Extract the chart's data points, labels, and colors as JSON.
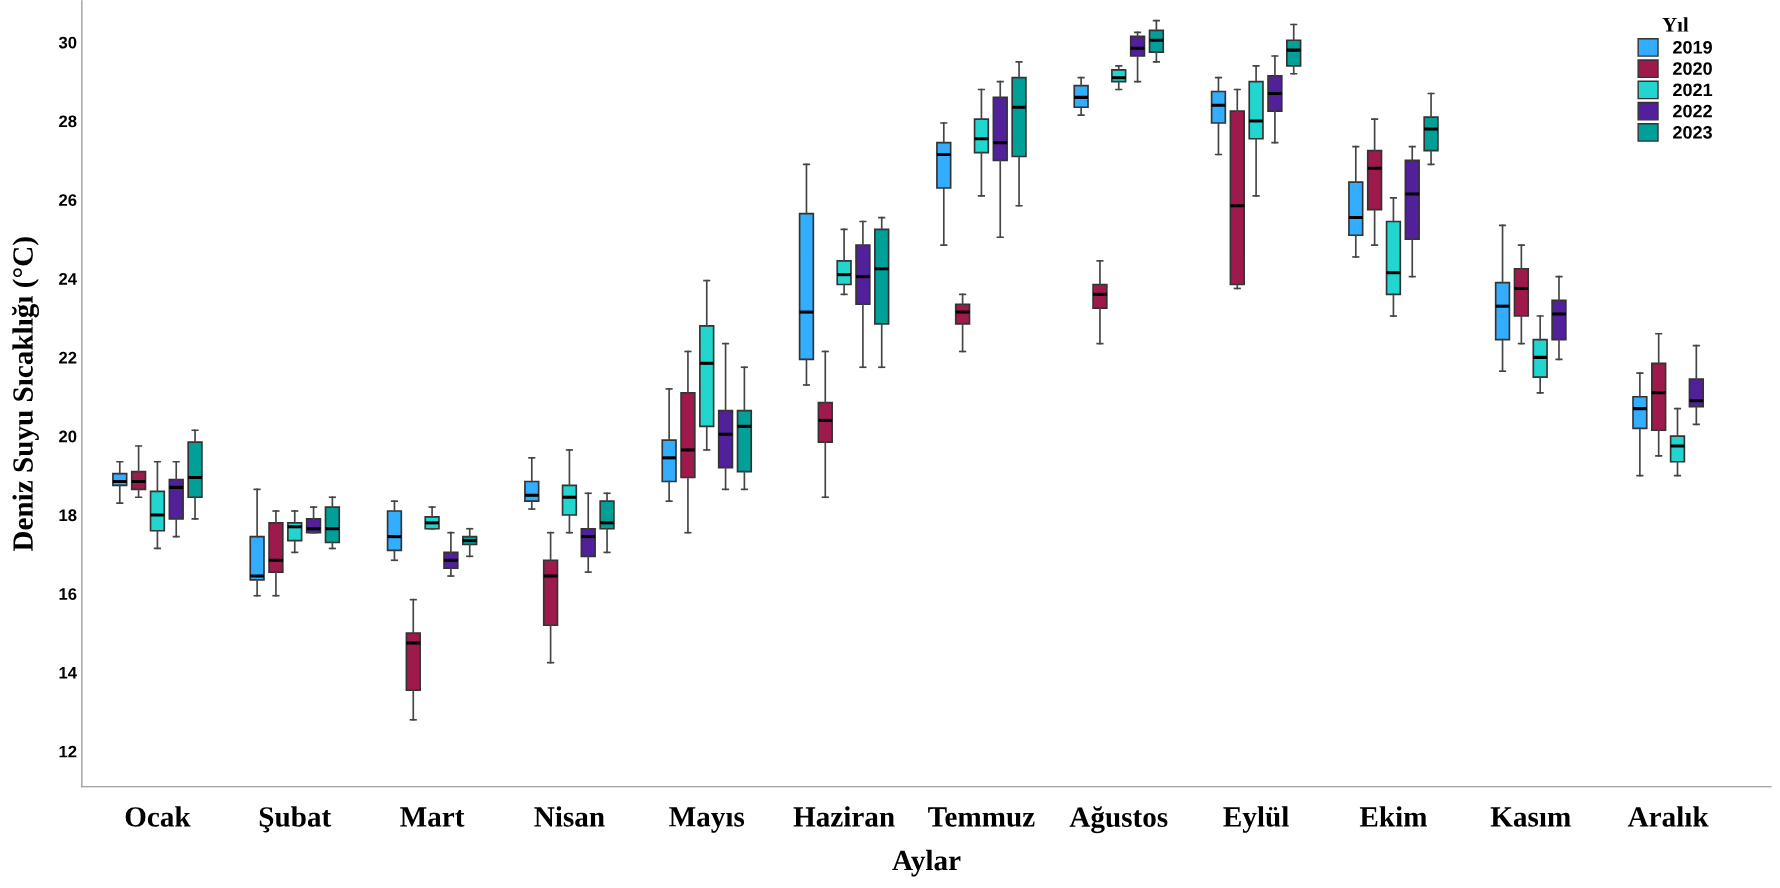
{
  "chart_data": {
    "type": "box",
    "xlabel": "Aylar",
    "ylabel": "Deniz Suyu Sıcaklığı (°C)",
    "legend_title": "Yıl",
    "legend": "top right",
    "grid": false,
    "categories": [
      "Ocak",
      "Şubat",
      "Mart",
      "Nisan",
      "Mayıs",
      "Haziran",
      "Temmuz",
      "Ağustos",
      "Eylül",
      "Ekim",
      "Kasım",
      "Aralık"
    ],
    "ylim": [
      11.1,
      31.05
    ],
    "yticks": [
      12,
      14,
      16,
      18,
      20,
      22,
      24,
      26,
      28,
      30
    ],
    "series": [
      {
        "name": "2019",
        "color": "#33adff",
        "boxes": [
          {
            "low": 18.3,
            "q1": 18.75,
            "median": 18.85,
            "q3": 19.05,
            "high": 19.35
          },
          {
            "low": 15.95,
            "q1": 16.35,
            "median": 16.45,
            "q3": 17.45,
            "high": 18.65
          },
          {
            "low": 16.85,
            "q1": 17.1,
            "median": 17.45,
            "q3": 18.1,
            "high": 18.35
          },
          {
            "low": 18.15,
            "q1": 18.35,
            "median": 18.5,
            "q3": 18.85,
            "high": 19.45
          },
          {
            "low": 18.35,
            "q1": 18.85,
            "median": 19.45,
            "q3": 19.9,
            "high": 21.2
          },
          {
            "low": 21.3,
            "q1": 21.95,
            "median": 23.15,
            "q3": 25.65,
            "high": 26.9
          },
          {
            "low": 24.85,
            "q1": 26.3,
            "median": 27.15,
            "q3": 27.45,
            "high": 27.95
          },
          {
            "low": 28.15,
            "q1": 28.35,
            "median": 28.6,
            "q3": 28.9,
            "high": 29.1
          },
          {
            "low": 27.15,
            "q1": 27.95,
            "median": 28.4,
            "q3": 28.75,
            "high": 29.1
          },
          {
            "low": 24.55,
            "q1": 25.1,
            "median": 25.55,
            "q3": 26.45,
            "high": 27.35
          },
          {
            "low": 21.65,
            "q1": 22.45,
            "median": 23.3,
            "q3": 23.9,
            "high": 25.35
          },
          {
            "low": 19.0,
            "q1": 20.2,
            "median": 20.7,
            "q3": 21.0,
            "high": 21.6
          }
        ]
      },
      {
        "name": "2020",
        "color": "#9e1a4c",
        "boxes": [
          {
            "low": 18.45,
            "q1": 18.65,
            "median": 18.85,
            "q3": 19.1,
            "high": 19.75
          },
          {
            "low": 15.95,
            "q1": 16.55,
            "median": 16.85,
            "q3": 17.8,
            "high": 18.1
          },
          {
            "low": 12.8,
            "q1": 13.55,
            "median": 14.75,
            "q3": 15.0,
            "high": 15.85
          },
          {
            "low": 14.25,
            "q1": 15.2,
            "median": 16.45,
            "q3": 16.85,
            "high": 17.55
          },
          {
            "low": 17.55,
            "q1": 18.95,
            "median": 19.65,
            "q3": 21.1,
            "high": 22.15
          },
          {
            "low": 18.45,
            "q1": 19.85,
            "median": 20.4,
            "q3": 20.85,
            "high": 22.15
          },
          {
            "low": 22.15,
            "q1": 22.85,
            "median": 23.15,
            "q3": 23.35,
            "high": 23.6
          },
          {
            "low": 22.35,
            "q1": 23.25,
            "median": 23.6,
            "q3": 23.85,
            "high": 24.45
          },
          {
            "low": 23.75,
            "q1": 23.85,
            "median": 25.85,
            "q3": 28.25,
            "high": 28.8
          },
          {
            "low": 24.85,
            "q1": 25.75,
            "median": 26.8,
            "q3": 27.25,
            "high": 28.05
          },
          {
            "low": 22.35,
            "q1": 23.05,
            "median": 23.75,
            "q3": 24.25,
            "high": 24.85
          },
          {
            "low": 19.5,
            "q1": 20.15,
            "median": 21.1,
            "q3": 21.85,
            "high": 22.6
          }
        ]
      },
      {
        "name": "2021",
        "color": "#22d6cf",
        "boxes": [
          {
            "low": 17.15,
            "q1": 17.6,
            "median": 18.0,
            "q3": 18.6,
            "high": 19.35
          },
          {
            "low": 17.05,
            "q1": 17.35,
            "median": 17.7,
            "q3": 17.8,
            "high": 18.1
          },
          {
            "low": 17.65,
            "q1": 17.65,
            "median": 17.8,
            "q3": 17.95,
            "high": 18.2
          },
          {
            "low": 17.55,
            "q1": 18.0,
            "median": 18.45,
            "q3": 18.75,
            "high": 19.65
          },
          {
            "low": 19.65,
            "q1": 20.25,
            "median": 21.85,
            "q3": 22.8,
            "high": 23.95
          },
          {
            "low": 23.6,
            "q1": 23.85,
            "median": 24.1,
            "q3": 24.45,
            "high": 25.25
          },
          {
            "low": 26.1,
            "q1": 27.2,
            "median": 27.55,
            "q3": 28.05,
            "high": 28.8
          },
          {
            "low": 28.8,
            "q1": 29.0,
            "median": 29.1,
            "q3": 29.3,
            "high": 29.4
          },
          {
            "low": 26.1,
            "q1": 27.55,
            "median": 28.0,
            "q3": 29.0,
            "high": 29.4
          },
          {
            "low": 23.05,
            "q1": 23.6,
            "median": 24.15,
            "q3": 25.45,
            "high": 26.05
          },
          {
            "low": 21.1,
            "q1": 21.5,
            "median": 22.0,
            "q3": 22.45,
            "high": 23.05
          },
          {
            "low": 19.0,
            "q1": 19.35,
            "median": 19.75,
            "q3": 20.0,
            "high": 20.7
          }
        ]
      },
      {
        "name": "2022",
        "color": "#52209a",
        "boxes": [
          {
            "low": 17.45,
            "q1": 17.9,
            "median": 18.7,
            "q3": 18.9,
            "high": 19.35
          },
          {
            "low": 17.55,
            "q1": 17.55,
            "median": 17.65,
            "q3": 17.9,
            "high": 18.2
          },
          {
            "low": 16.45,
            "q1": 16.65,
            "median": 16.85,
            "q3": 17.05,
            "high": 17.55
          },
          {
            "low": 16.55,
            "q1": 16.95,
            "median": 17.45,
            "q3": 17.65,
            "high": 18.55
          },
          {
            "low": 18.65,
            "q1": 19.2,
            "median": 20.05,
            "q3": 20.65,
            "high": 22.35
          },
          {
            "low": 21.75,
            "q1": 23.35,
            "median": 24.05,
            "q3": 24.85,
            "high": 25.45
          },
          {
            "low": 25.05,
            "q1": 27.0,
            "median": 27.45,
            "q3": 28.6,
            "high": 29.0
          },
          {
            "low": 29.0,
            "q1": 29.65,
            "median": 29.85,
            "q3": 30.15,
            "high": 30.25
          },
          {
            "low": 27.45,
            "q1": 28.25,
            "median": 28.7,
            "q3": 29.15,
            "high": 29.65
          },
          {
            "low": 24.05,
            "q1": 25.0,
            "median": 26.15,
            "q3": 27.0,
            "high": 27.35
          },
          {
            "low": 21.95,
            "q1": 22.45,
            "median": 23.1,
            "q3": 23.45,
            "high": 24.05
          },
          {
            "low": 20.3,
            "q1": 20.75,
            "median": 20.9,
            "q3": 21.45,
            "high": 22.3
          }
        ]
      },
      {
        "name": "2023",
        "color": "#009f98",
        "boxes": [
          {
            "low": 17.9,
            "q1": 18.45,
            "median": 18.95,
            "q3": 19.85,
            "high": 20.15
          },
          {
            "low": 17.15,
            "q1": 17.3,
            "median": 17.65,
            "q3": 18.2,
            "high": 18.45
          },
          {
            "low": 16.95,
            "q1": 17.25,
            "median": 17.35,
            "q3": 17.45,
            "high": 17.65
          },
          {
            "low": 17.05,
            "q1": 17.65,
            "median": 17.8,
            "q3": 18.35,
            "high": 18.55
          },
          {
            "low": 18.65,
            "q1": 19.1,
            "median": 20.25,
            "q3": 20.65,
            "high": 21.75
          },
          {
            "low": 21.75,
            "q1": 22.85,
            "median": 24.25,
            "q3": 25.25,
            "high": 25.55
          },
          {
            "low": 25.85,
            "q1": 27.1,
            "median": 28.35,
            "q3": 29.1,
            "high": 29.5
          },
          {
            "low": 29.5,
            "q1": 29.75,
            "median": 30.05,
            "q3": 30.3,
            "high": 30.55
          },
          {
            "low": 29.2,
            "q1": 29.4,
            "median": 29.8,
            "q3": 30.05,
            "high": 30.45
          },
          {
            "low": 26.9,
            "q1": 27.25,
            "median": 27.8,
            "q3": 28.1,
            "high": 28.7
          },
          null,
          null
        ]
      }
    ]
  }
}
